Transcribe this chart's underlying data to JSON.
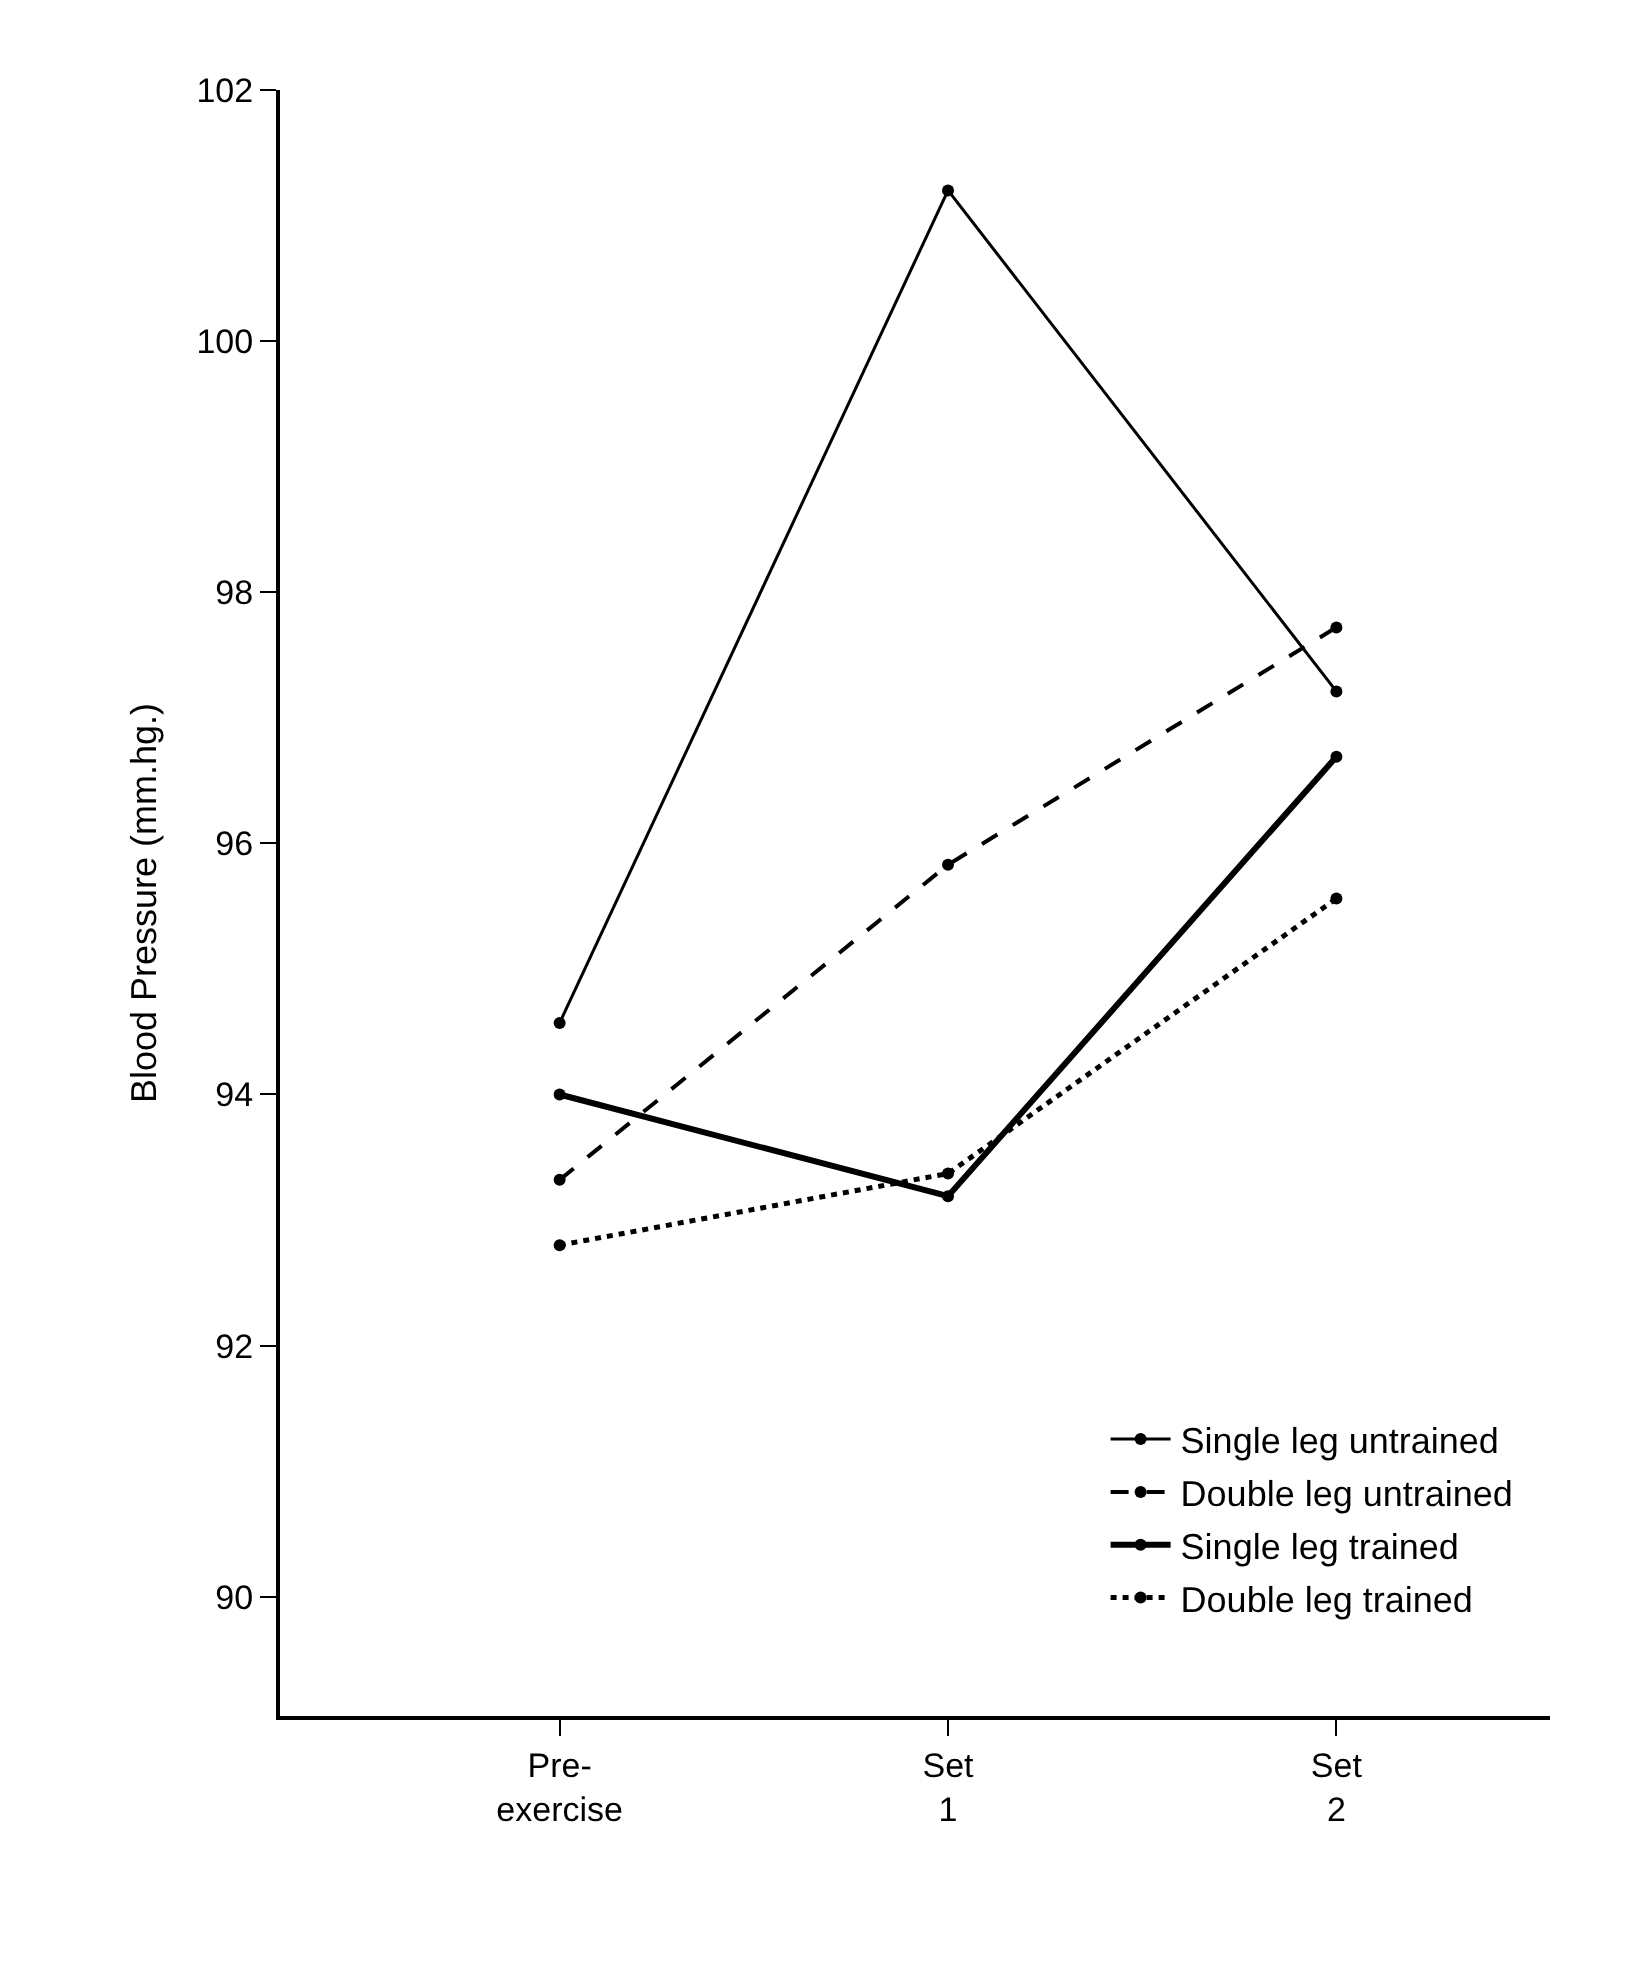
{
  "chart_data": {
    "type": "line",
    "ylabel": "Blood Pressure (mm.hg.)",
    "categories": [
      "Pre-\nexercise",
      "Set\n1",
      "Set\n2"
    ],
    "series": [
      {
        "name": "Single leg untrained",
        "color": "#000000",
        "line_style": "solid",
        "values": [
          94.57,
          101.2,
          97.21
        ]
      },
      {
        "name": "Double leg untrained",
        "color": "#000000",
        "line_style": "dashed",
        "values": [
          93.32,
          95.83,
          97.72
        ]
      },
      {
        "name": "Single leg trained",
        "color": "#000000",
        "line_style": "solid",
        "values": [
          94.0,
          93.19,
          96.69
        ]
      },
      {
        "name": "Double leg trained",
        "color": "#000000",
        "line_style": "dotted",
        "values": [
          92.8,
          93.37,
          95.56
        ]
      }
    ],
    "ylim": [
      89.05,
      102
    ],
    "yticks": [
      90,
      92,
      94,
      96,
      98,
      100,
      102
    ],
    "marker": "circle",
    "legend": "bottom right"
  }
}
